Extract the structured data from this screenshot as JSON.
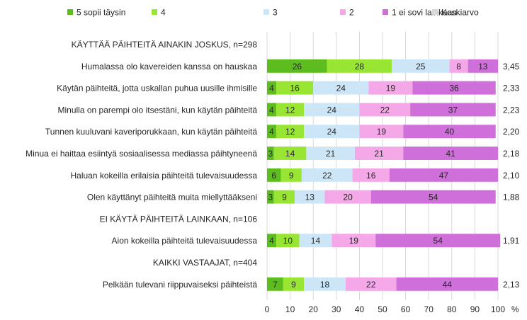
{
  "chart_data": {
    "type": "bar",
    "stacked": true,
    "orientation": "horizontal",
    "percent_unit": "%",
    "xlim": [
      0,
      100
    ],
    "x_ticks": [
      0,
      10,
      20,
      30,
      40,
      50,
      60,
      70,
      80,
      90,
      100
    ],
    "grid": true,
    "legend_position": "top",
    "legend": [
      {
        "label": "5 sopii täysin",
        "color": "#5ebd1e"
      },
      {
        "label": "4",
        "color": "#99e533"
      },
      {
        "label": "3",
        "color": "#cde6f7"
      },
      {
        "label": "2",
        "color": "#f4a8e8"
      },
      {
        "label": "1 ei sovi lainkaan",
        "color": "#cf6fd9"
      },
      {
        "label": "Keskiarvo",
        "color": "#d9d9d9"
      }
    ],
    "rows": [
      {
        "kind": "header",
        "label": "KÄYTTÄÄ PÄIHTEITÄ AINAKIN JOSKUS, n=298"
      },
      {
        "kind": "bar",
        "label": "Humalassa olo kavereiden kanssa on hauskaa",
        "values": [
          26,
          28,
          25,
          8,
          13
        ],
        "mean": "3,45"
      },
      {
        "kind": "bar",
        "label": "Käytän päihteitä, jotta uskallan puhua uusille ihmisille",
        "values": [
          4,
          16,
          24,
          19,
          36
        ],
        "mean": "2,33"
      },
      {
        "kind": "bar",
        "label": "Minulla on parempi olo itsestäni, kun käytän päihteitä",
        "values": [
          4,
          12,
          24,
          22,
          37
        ],
        "mean": "2,23"
      },
      {
        "kind": "bar",
        "label": "Tunnen kuuluvani kaveriporukkaan, kun käytän päihteitä",
        "values": [
          4,
          12,
          24,
          19,
          40
        ],
        "mean": "2,20"
      },
      {
        "kind": "bar",
        "label": "Minua ei haittaa esiintyä sosiaalisessa mediassa päihtyneenä",
        "values": [
          3,
          14,
          21,
          21,
          41
        ],
        "mean": "2,18"
      },
      {
        "kind": "bar",
        "label": "Haluan kokeilla erilaisia päihteitä tulevaisuudessa",
        "values": [
          6,
          9,
          22,
          16,
          47
        ],
        "mean": "2,10"
      },
      {
        "kind": "bar",
        "label": "Olen käyttänyt päihteitä muita miellyttääkseni",
        "values": [
          3,
          9,
          13,
          20,
          54
        ],
        "mean": "1,88"
      },
      {
        "kind": "header",
        "label": "EI KÄYTÄ PÄIHTEITÄ LAINKAAN, n=106"
      },
      {
        "kind": "bar",
        "label": "Aion kokeilla päihteitä tulevaisuudessa",
        "values": [
          4,
          10,
          14,
          19,
          54
        ],
        "mean": "1,91"
      },
      {
        "kind": "header",
        "label": "KAIKKI VASTAAJAT, n=404"
      },
      {
        "kind": "bar",
        "label": "Pelkään tulevani riippuvaiseksi päihteistä",
        "values": [
          7,
          9,
          18,
          22,
          44
        ],
        "mean": "2,13"
      }
    ]
  }
}
